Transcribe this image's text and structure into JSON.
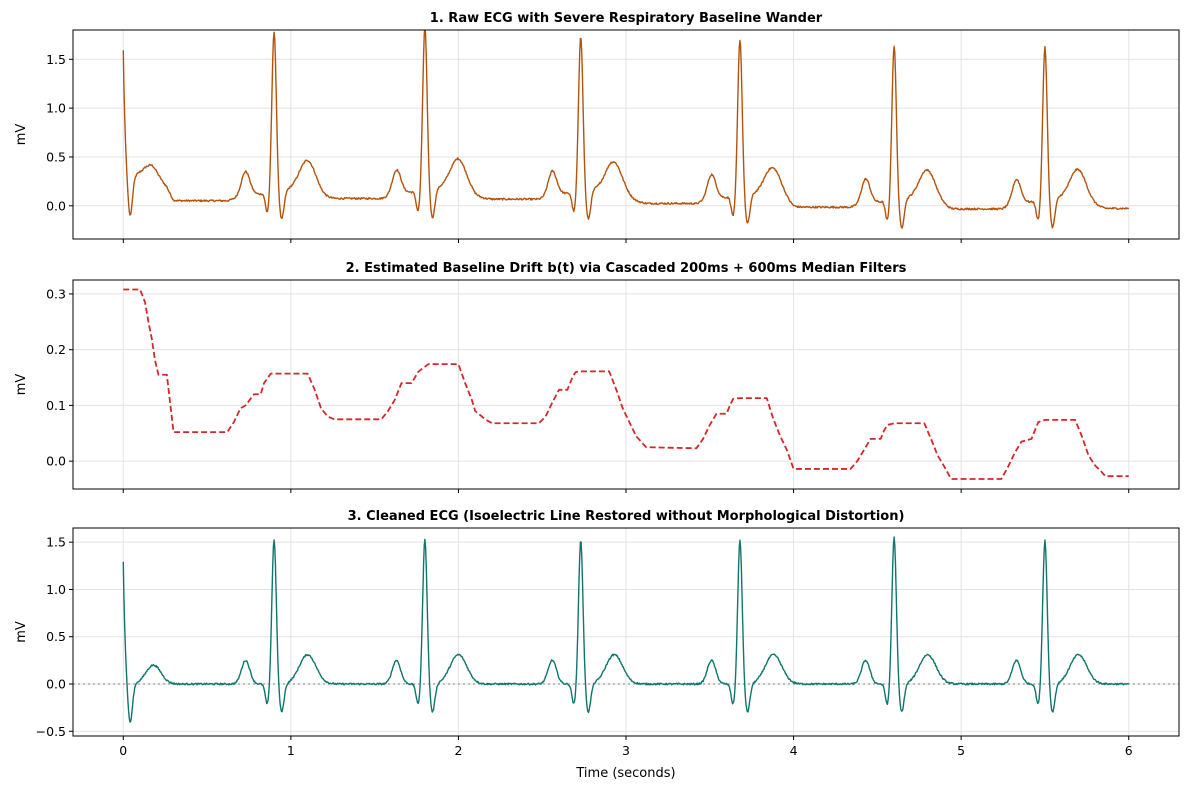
{
  "chart_data": [
    {
      "type": "line",
      "title": "1. Raw ECG with Severe Respiratory Baseline Wander",
      "xlabel": "",
      "ylabel": "mV",
      "xlim": [
        -0.3,
        6.3
      ],
      "ylim": [
        -0.34,
        1.8
      ],
      "xticks": [
        0,
        1,
        2,
        3,
        4,
        5,
        6
      ],
      "xtick_labels_visible": false,
      "yticks": [
        0.0,
        0.5,
        1.0,
        1.5
      ],
      "ytick_labels": [
        "0.0",
        "0.5",
        "1.0",
        "1.5"
      ],
      "grid": true,
      "color": "#b5530c",
      "line_style": "solid",
      "signal": "raw_ecg",
      "beat_times": [
        0.9,
        1.8,
        2.73,
        3.68,
        4.6,
        5.5
      ],
      "r_peaks": [
        1.68,
        1.71,
        1.63,
        1.64,
        1.62,
        1.6
      ],
      "start_value": 1.6
    },
    {
      "type": "line",
      "title": "2. Estimated Baseline Drift b(t) via Cascaded 200ms + 600ms Median Filters",
      "xlabel": "",
      "ylabel": "mV",
      "xlim": [
        -0.3,
        6.3
      ],
      "ylim": [
        -0.05,
        0.325
      ],
      "xticks": [
        0,
        1,
        2,
        3,
        4,
        5,
        6
      ],
      "xtick_labels_visible": false,
      "yticks": [
        0.0,
        0.1,
        0.2,
        0.3
      ],
      "ytick_labels": [
        "0.0",
        "0.1",
        "0.2",
        "0.3"
      ],
      "grid": true,
      "color": "#d62728",
      "line_style": "dashed",
      "signal": "baseline",
      "x": [
        0.0,
        0.1,
        0.13,
        0.15,
        0.17,
        0.19,
        0.21,
        0.26,
        0.3,
        0.62,
        0.66,
        0.7,
        0.73,
        0.78,
        0.82,
        0.84,
        0.88,
        1.1,
        1.14,
        1.18,
        1.22,
        1.26,
        1.32,
        1.54,
        1.58,
        1.62,
        1.66,
        1.72,
        1.76,
        1.78,
        1.82,
        2.0,
        2.04,
        2.08,
        2.1,
        2.16,
        2.2,
        2.48,
        2.52,
        2.56,
        2.6,
        2.65,
        2.68,
        2.7,
        2.74,
        2.9,
        2.94,
        2.98,
        3.02,
        3.06,
        3.12,
        3.42,
        3.46,
        3.5,
        3.54,
        3.6,
        3.62,
        3.64,
        3.68,
        3.84,
        3.88,
        3.92,
        3.96,
        4.0,
        4.34,
        4.38,
        4.42,
        4.46,
        4.52,
        4.54,
        4.56,
        4.6,
        4.78,
        4.82,
        4.86,
        4.9,
        4.94,
        5.24,
        5.28,
        5.32,
        5.36,
        5.42,
        5.44,
        5.46,
        5.5,
        5.68,
        5.72,
        5.76,
        5.8,
        5.84,
        5.86,
        6.0
      ],
      "y": [
        0.308,
        0.308,
        0.285,
        0.25,
        0.22,
        0.18,
        0.155,
        0.155,
        0.052,
        0.052,
        0.07,
        0.095,
        0.1,
        0.12,
        0.12,
        0.14,
        0.157,
        0.157,
        0.13,
        0.095,
        0.08,
        0.075,
        0.075,
        0.075,
        0.09,
        0.11,
        0.14,
        0.14,
        0.16,
        0.165,
        0.174,
        0.174,
        0.14,
        0.11,
        0.09,
        0.075,
        0.068,
        0.068,
        0.08,
        0.105,
        0.128,
        0.128,
        0.15,
        0.16,
        0.161,
        0.161,
        0.13,
        0.095,
        0.07,
        0.045,
        0.025,
        0.023,
        0.04,
        0.065,
        0.085,
        0.085,
        0.1,
        0.112,
        0.113,
        0.113,
        0.075,
        0.045,
        0.02,
        -0.014,
        -0.014,
        0.0,
        0.02,
        0.04,
        0.04,
        0.055,
        0.065,
        0.068,
        0.068,
        0.04,
        0.01,
        -0.01,
        -0.032,
        -0.032,
        -0.01,
        0.015,
        0.035,
        0.04,
        0.055,
        0.07,
        0.074,
        0.074,
        0.045,
        0.01,
        -0.008,
        -0.02,
        -0.027,
        -0.027
      ]
    },
    {
      "type": "line",
      "title": "3. Cleaned ECG (Isoelectric Line Restored without Morphological Distortion)",
      "xlabel": "Time (seconds)",
      "ylabel": "mV",
      "xlim": [
        -0.3,
        6.3
      ],
      "ylim": [
        -0.55,
        1.65
      ],
      "xticks": [
        0,
        1,
        2,
        3,
        4,
        5,
        6
      ],
      "xtick_labels": [
        "0",
        "1",
        "2",
        "3",
        "4",
        "5",
        "6"
      ],
      "xtick_labels_visible": true,
      "yticks": [
        -0.5,
        0.0,
        0.5,
        1.0,
        1.5
      ],
      "ytick_labels": [
        "−0.5",
        "0.0",
        "0.5",
        "1.0",
        "1.5"
      ],
      "grid": true,
      "color": "#0f766e",
      "line_style": "solid",
      "reference_line": {
        "y": 0,
        "color": "#999999",
        "style": "dotted"
      },
      "signal": "cleaned_ecg",
      "beat_times": [
        0.9,
        1.8,
        2.73,
        3.68,
        4.6,
        5.5
      ],
      "r_peaks": [
        1.53,
        1.53,
        1.52,
        1.52,
        1.55,
        1.52
      ],
      "start_value": 1.3
    }
  ]
}
